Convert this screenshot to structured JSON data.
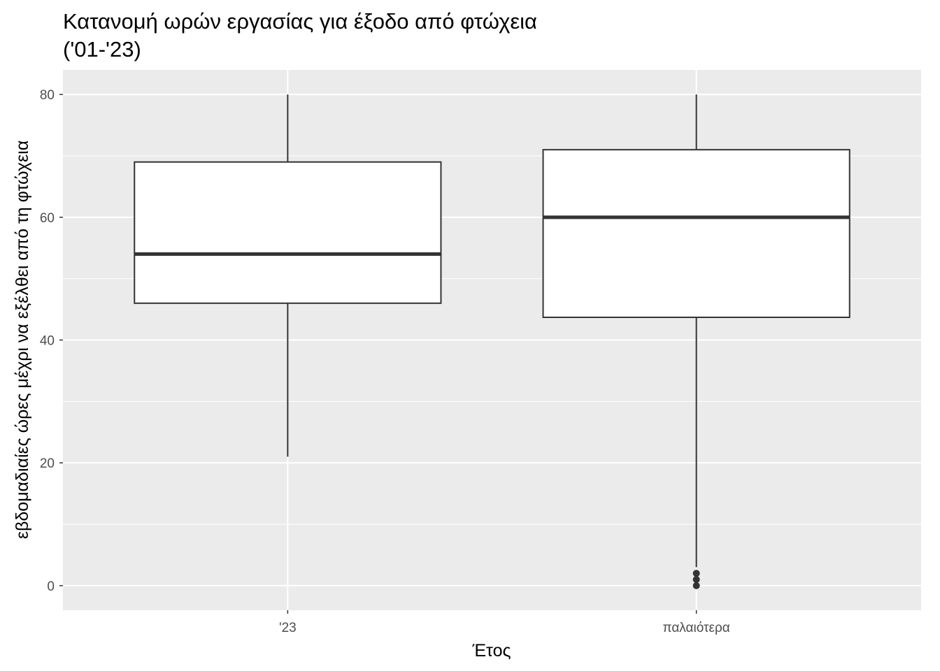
{
  "chart_data": {
    "type": "boxplot",
    "title_lines": [
      "Κατανομή ωρών εργασίας για έξοδο από φτώχεια",
      "('01-'23)"
    ],
    "xlabel": "Έτος",
    "ylabel": "εβδομαδιαίες ώρες μέχρι να εξέλθει από τη φτώχεια",
    "ylim": [
      -4,
      84
    ],
    "y_ticks": [
      0,
      20,
      40,
      60,
      80
    ],
    "categories": [
      "'23",
      "παλαιότερα"
    ],
    "boxes": [
      {
        "category": "'23",
        "min": 21,
        "q1": 46,
        "median": 54,
        "q3": 69,
        "max": 80,
        "outliers": []
      },
      {
        "category": "παλαιότερα",
        "min": 3,
        "q1": 43.7,
        "median": 60,
        "q3": 71,
        "max": 80,
        "outliers": [
          0,
          1,
          2
        ]
      }
    ],
    "grid": true,
    "colors": {
      "panel": "#ebebeb",
      "grid": "#ffffff",
      "box_fill": "#ffffff",
      "box_stroke": "#333333"
    }
  }
}
